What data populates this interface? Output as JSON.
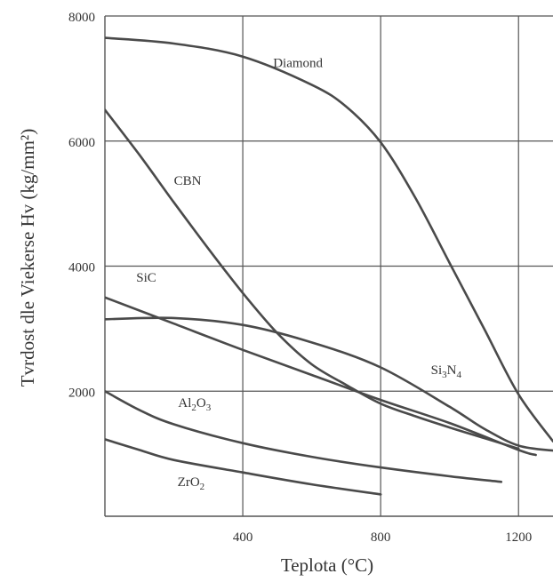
{
  "chart_data": {
    "type": "line",
    "title": "",
    "xlabel": "Teplota (°C)",
    "ylabel": "Tvrdost dle Viekerse Hv (kg/mm²)",
    "xlim": [
      0,
      1300
    ],
    "ylim": [
      0,
      8000
    ],
    "xticks": [
      400,
      800,
      1200
    ],
    "xtick_labels": [
      "400",
      "800",
      "1200"
    ],
    "yticks": [
      2000,
      4000,
      6000,
      8000
    ],
    "ytick_labels": [
      "2000",
      "4000",
      "6000",
      "8000"
    ],
    "grid": true,
    "legend": "none (series labeled directly on curves)",
    "colors": {
      "line": "#4a4a4a",
      "grid": "#555555",
      "text": "#333333"
    },
    "series": [
      {
        "name": "Diamond",
        "x": [
          0,
          200,
          400,
          600,
          700,
          800,
          900,
          1000,
          1100,
          1200,
          1300
        ],
        "y": [
          7650,
          7560,
          7350,
          6900,
          6550,
          5980,
          5100,
          4050,
          3000,
          1950,
          1200
        ]
      },
      {
        "name": "CBN",
        "x": [
          0,
          100,
          200,
          300,
          400,
          500,
          600,
          700,
          800,
          900,
          1000,
          1100,
          1200
        ],
        "y": [
          6500,
          5780,
          5020,
          4280,
          3570,
          2930,
          2430,
          2100,
          1800,
          1600,
          1420,
          1250,
          1080
        ]
      },
      {
        "name": "SiC",
        "x": [
          0,
          200,
          400,
          600,
          800,
          1000,
          1200,
          1250
        ],
        "y": [
          3500,
          3080,
          2660,
          2260,
          1860,
          1490,
          1060,
          980
        ]
      },
      {
        "name": "Si3N4",
        "x": [
          0,
          200,
          400,
          600,
          800,
          1000,
          1100,
          1200,
          1300
        ],
        "y": [
          3150,
          3170,
          3060,
          2780,
          2380,
          1750,
          1400,
          1130,
          1050
        ]
      },
      {
        "name": "Al2O3",
        "x": [
          0,
          100,
          200,
          400,
          600,
          800,
          1000,
          1150
        ],
        "y": [
          2000,
          1700,
          1470,
          1170,
          950,
          780,
          640,
          550
        ]
      },
      {
        "name": "ZrO2",
        "x": [
          0,
          100,
          200,
          400,
          600,
          800
        ],
        "y": [
          1230,
          1060,
          900,
          700,
          510,
          350
        ]
      }
    ],
    "annotations": [
      {
        "series": "Diamond",
        "text": "Diamond",
        "x": 560,
        "y": 7180
      },
      {
        "series": "CBN",
        "text": "CBN",
        "x": 240,
        "y": 5300
      },
      {
        "series": "SiC",
        "text": "SiC",
        "x": 120,
        "y": 3750
      },
      {
        "series": "Si3N4",
        "text": "Si",
        "sub1": "3",
        "mid": "N",
        "sub2": "4",
        "x": 990,
        "y": 2270
      },
      {
        "series": "Al2O3",
        "text": "Al",
        "sub1": "2",
        "mid": "O",
        "sub2": "3",
        "x": 260,
        "y": 1750
      },
      {
        "series": "ZrO2",
        "text": "ZrO",
        "sub1": "2",
        "x": 250,
        "y": 480
      }
    ]
  }
}
